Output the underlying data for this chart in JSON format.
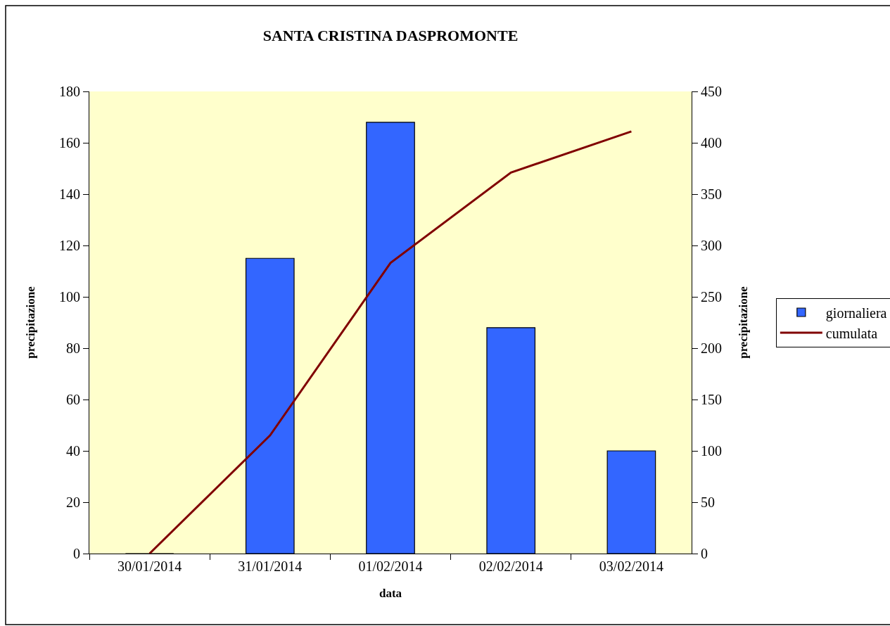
{
  "chart_data": {
    "type": "bar",
    "title": "SANTA CRISTINA DASPROMONTE",
    "xlabel": "data",
    "ylabel": "precipitazione",
    "y2label": "precipitazione",
    "categories": [
      "30/01/2014",
      "31/01/2014",
      "01/02/2014",
      "02/02/2014",
      "03/02/2014"
    ],
    "series": [
      {
        "name": "giornaliera",
        "color": "#3366ff",
        "values": [
          0,
          115,
          168,
          88,
          40
        ]
      },
      {
        "name": "cumulata",
        "type": "line",
        "axis": "y2",
        "color": "#800000",
        "values": [
          0,
          115,
          283,
          371,
          411
        ]
      }
    ],
    "ylim": [
      0,
      180
    ],
    "yticks": [
      0,
      20,
      40,
      60,
      80,
      100,
      120,
      140,
      160,
      180
    ],
    "y2lim": [
      0,
      450
    ],
    "y2ticks": [
      0,
      50,
      100,
      150,
      200,
      250,
      300,
      350,
      400,
      450
    ],
    "grid": false,
    "legend": "right",
    "marker": "none",
    "line_style": "solid"
  }
}
